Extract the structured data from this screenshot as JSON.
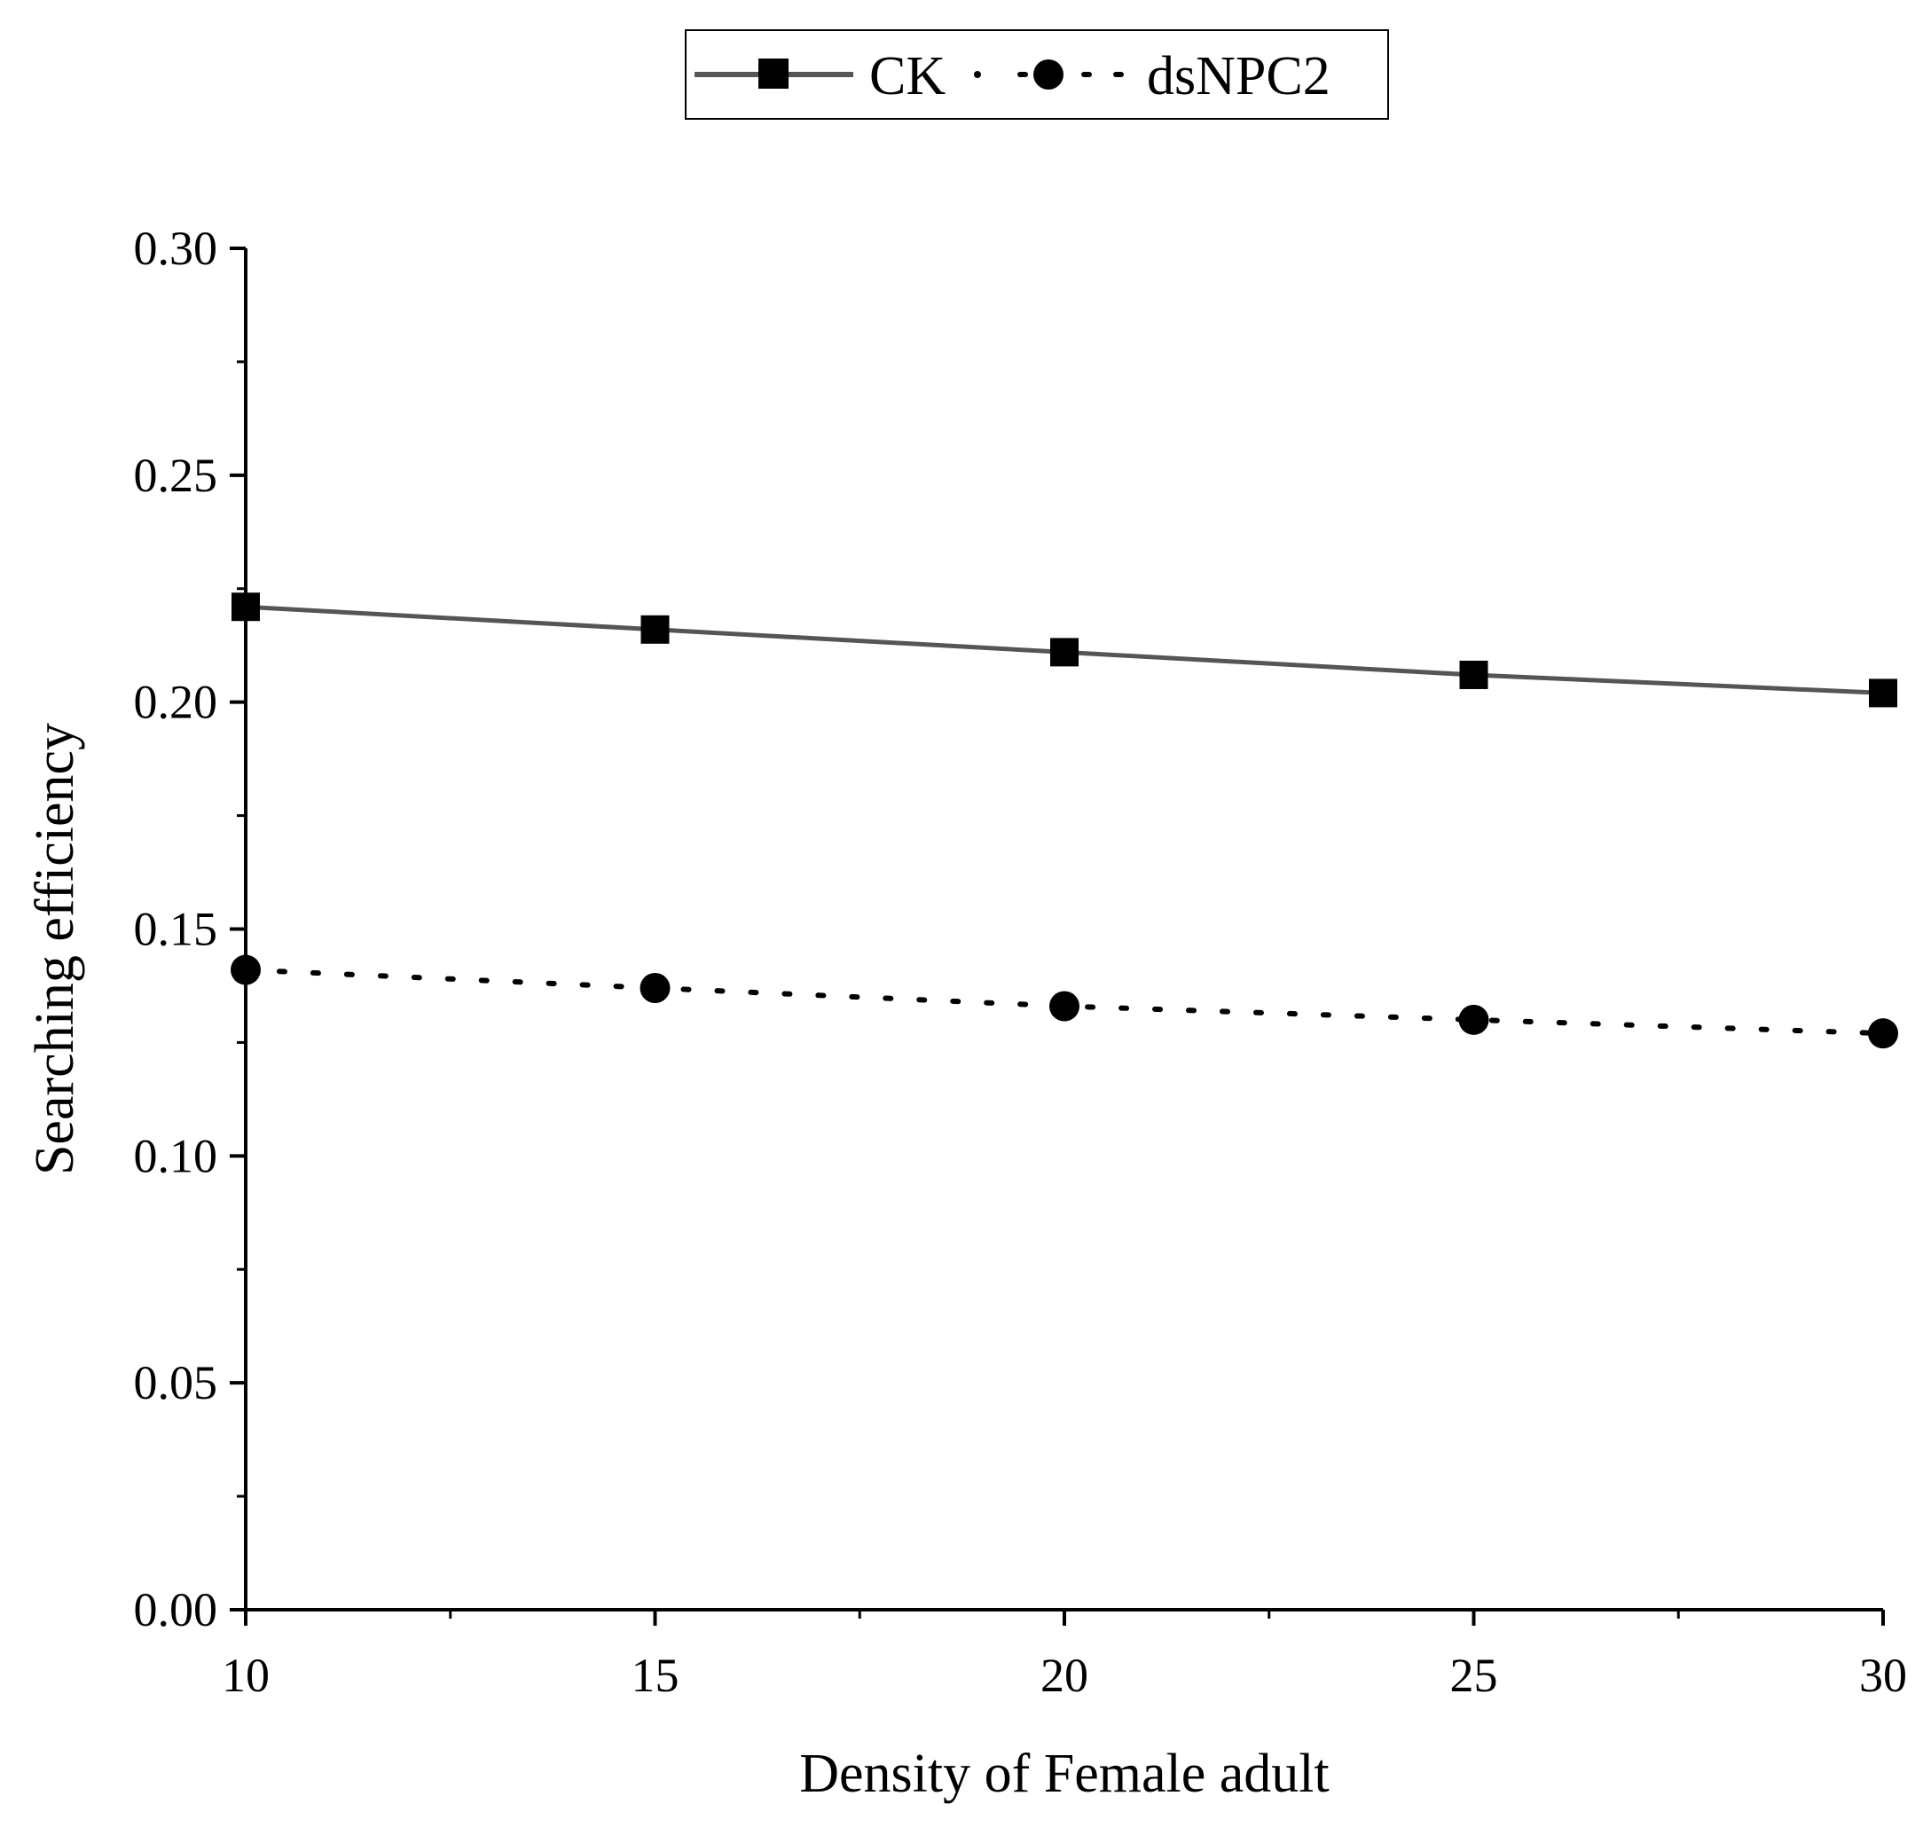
{
  "chart_data": {
    "type": "line",
    "title": "",
    "xlabel": "Density of Female adult",
    "ylabel": "Searching efficiency",
    "xlim": [
      10,
      30
    ],
    "ylim": [
      0.0,
      0.3
    ],
    "x_ticks": [
      10,
      15,
      20,
      25,
      30
    ],
    "x_tick_labels": [
      "10",
      "15",
      "20",
      "25",
      "30"
    ],
    "y_ticks": [
      0.0,
      0.05,
      0.1,
      0.15,
      0.2,
      0.25,
      0.3
    ],
    "y_tick_labels": [
      "0.00",
      "0.05",
      "0.10",
      "0.15",
      "0.20",
      "0.25",
      "0.30"
    ],
    "grid": false,
    "legend_position": "top-center",
    "series": [
      {
        "name": "CK",
        "line_style": "solid",
        "marker": "square",
        "color": "#555555",
        "marker_color": "#000000",
        "x": [
          10,
          15,
          20,
          25,
          30
        ],
        "values": [
          0.221,
          0.216,
          0.211,
          0.206,
          0.202
        ]
      },
      {
        "name": "dsNPC2",
        "line_style": "dotted",
        "marker": "circle",
        "color": "#000000",
        "marker_color": "#000000",
        "x": [
          10,
          15,
          20,
          25,
          30
        ],
        "values": [
          0.141,
          0.137,
          0.133,
          0.13,
          0.127
        ]
      }
    ]
  }
}
